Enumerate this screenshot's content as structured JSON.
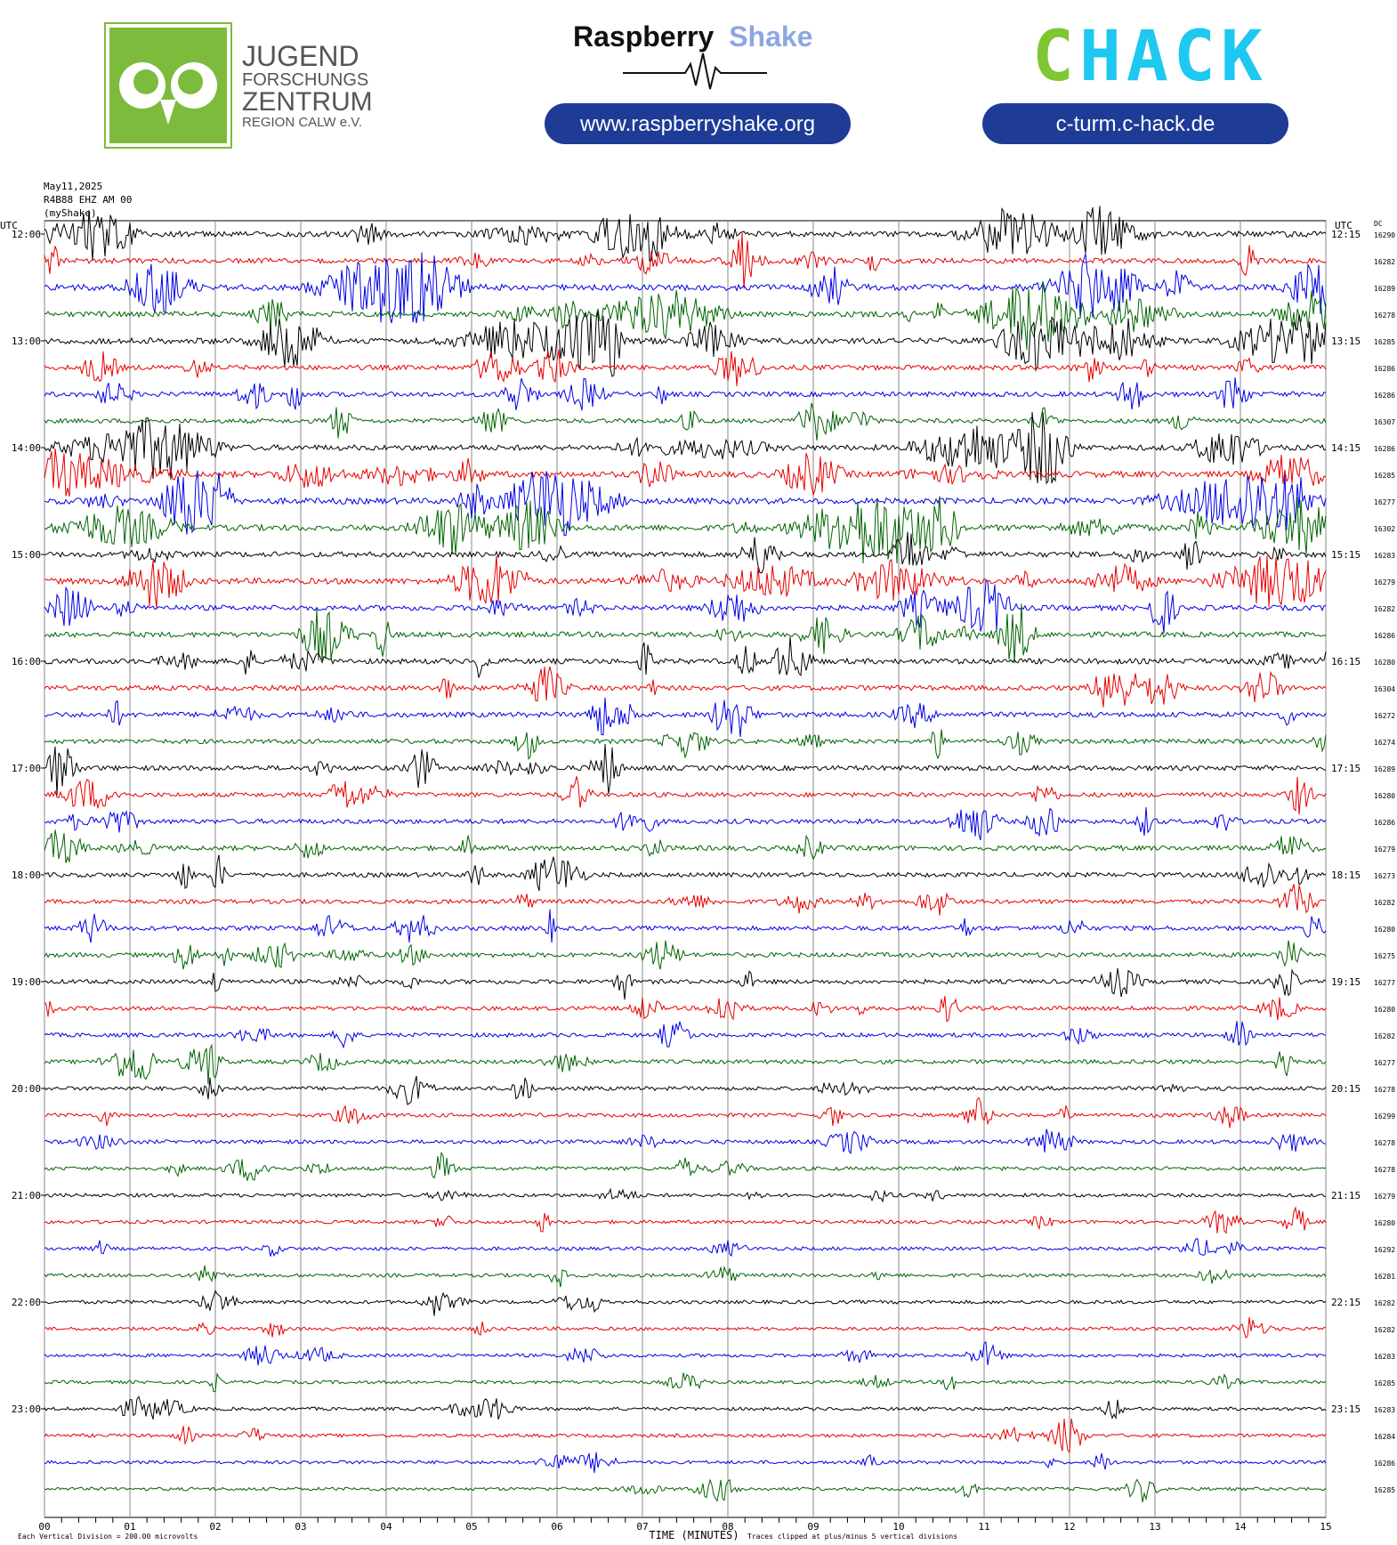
{
  "header": {
    "jfz": {
      "line1": "JUGEND",
      "line2": "FORSCHUNGS",
      "line3": "ZENTRUM",
      "line4": "REGION CALW e.V."
    },
    "rs": {
      "brand_a": "Raspberry",
      "brand_b": "Shake",
      "url": "www.raspberryshake.org"
    },
    "chack": {
      "logo": "CHACK",
      "url": "c-turm.c-hack.de"
    },
    "colors": {
      "jfz_green": "#7dbb3c",
      "rs_blue": "#8ea6e6",
      "pill_navy": "#1e3c96",
      "chack_green": "#7dc832",
      "chack_cyan": "#1ec8f0"
    }
  },
  "chart_data": {
    "type": "line",
    "title": "",
    "meta": {
      "date": "May11,2025",
      "station": "R4B88 EHZ AM 00",
      "source": "(myShake)"
    },
    "left_axis_label": "UTC",
    "right_axis_label": "UTC",
    "dc_label": "DC",
    "xlabel": "TIME (MINUTES)",
    "xlim": [
      0,
      15
    ],
    "x_ticks": [
      "00",
      "01",
      "02",
      "03",
      "04",
      "05",
      "06",
      "07",
      "08",
      "09",
      "10",
      "11",
      "12",
      "13",
      "14",
      "15"
    ],
    "footer_left": "Each Vertical Division =  200.00 microvolts",
    "footer_right": "Traces clipped at plus/minus 5 vertical divisions",
    "trace_minutes": 15,
    "trace_colors": [
      "#000000",
      "#e60000",
      "#0000e6",
      "#006400"
    ],
    "hour_labels_left": [
      "12:00",
      "13:00",
      "14:00",
      "15:00",
      "16:00",
      "17:00",
      "18:00",
      "19:00",
      "20:00",
      "21:00",
      "22:00",
      "23:00"
    ],
    "hour_labels_right": [
      "12:15",
      "13:15",
      "14:15",
      "15:15",
      "16:15",
      "17:15",
      "18:15",
      "19:15",
      "20:15",
      "21:15",
      "22:15",
      "23:15"
    ],
    "dc_values": [
      "16290",
      "16282",
      "16289",
      "16278",
      "16285",
      "16286",
      "16286",
      "16307",
      "16286",
      "16285",
      "16277",
      "16302",
      "16283",
      "16279",
      "16282",
      "16286",
      "16280",
      "16304",
      "16272",
      "16274",
      "16289",
      "16280",
      "16286",
      "16279",
      "16273",
      "16282",
      "16280",
      "16275",
      "16277",
      "16280",
      "16282",
      "16277",
      "16278",
      "16299",
      "16278",
      "16278",
      "16279",
      "16280",
      "16292",
      "16281",
      "16282",
      "16282",
      "16283",
      "16285",
      "16283",
      "16284",
      "16286",
      "16285"
    ],
    "activity": [
      0.9,
      0.75,
      1.0,
      0.85,
      0.95,
      0.7,
      0.7,
      0.6,
      0.85,
      1.0,
      1.0,
      0.95,
      0.8,
      0.95,
      0.8,
      0.8,
      0.8,
      0.7,
      0.75,
      0.6,
      0.7,
      0.6,
      0.65,
      0.7,
      0.6,
      0.55,
      0.6,
      0.6,
      0.55,
      0.5,
      0.5,
      0.5,
      0.45,
      0.45,
      0.45,
      0.4,
      0.35,
      0.35,
      0.35,
      0.35,
      0.35,
      0.3,
      0.3,
      0.3,
      0.3,
      0.3,
      0.3,
      0.3
    ]
  }
}
